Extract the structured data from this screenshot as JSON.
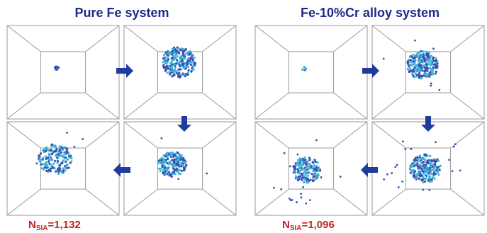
{
  "panels": [
    {
      "title": "Pure Fe system",
      "count": {
        "symbol": "N",
        "subscript": "SIA",
        "value": "=1,132"
      }
    },
    {
      "title": "Fe-10%Cr alloy system",
      "count": {
        "symbol": "N",
        "subscript": "SIA",
        "value": "=1,096"
      }
    }
  ]
}
